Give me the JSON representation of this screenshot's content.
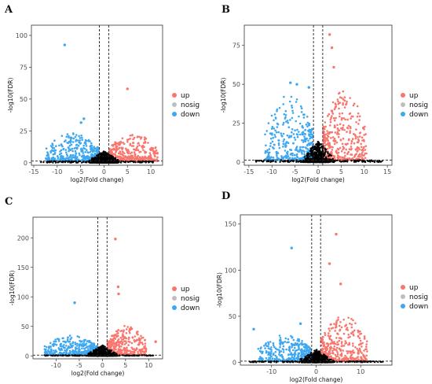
{
  "colors": {
    "up": "#F8766D",
    "nosig": "#BEBEBE",
    "down": "#3EA7F0",
    "core": "#000000",
    "frame": "#333333",
    "tick_text": "#4d4d4d"
  },
  "chart_data": [
    {
      "panel": "A",
      "type": "scatter",
      "xlabel": "log2(Fold change)",
      "ylabel": "-log10(FDR)",
      "xticks": [
        -15,
        -10,
        -5,
        0,
        5,
        10
      ],
      "yticks": [
        0,
        25,
        50,
        75,
        100
      ],
      "xlim": [
        -15.5,
        12.5
      ],
      "ylim": [
        -2,
        108
      ],
      "vlines": [
        -1,
        1
      ],
      "hline": 1.3,
      "legend": [
        "up",
        "nosig",
        "down"
      ],
      "highlight_points": [
        {
          "x": -8.4,
          "y": 92.5,
          "group": "down"
        },
        {
          "x": 5.0,
          "y": 58.0,
          "group": "up"
        },
        {
          "x": -4.3,
          "y": 34.5,
          "group": "down"
        },
        {
          "x": -4.9,
          "y": 31.5,
          "group": "down"
        }
      ],
      "clusters": {
        "down": {
          "xmin": -12.5,
          "xmax": -1.1,
          "ymax": 22
        },
        "up": {
          "xmin": 1.1,
          "xmax": 11.5,
          "ymax": 22
        },
        "core": {
          "x": 3.5,
          "y": 9
        }
      }
    },
    {
      "panel": "B",
      "type": "scatter",
      "xlabel": "log2(Fold change)",
      "ylabel": "-log10(FDR)",
      "xticks": [
        -15,
        -10,
        -5,
        0,
        5,
        10,
        15
      ],
      "yticks": [
        0,
        25,
        50,
        75
      ],
      "xlim": [
        -16,
        16
      ],
      "ylim": [
        -2,
        88
      ],
      "vlines": [
        -1,
        1
      ],
      "hline": 1.3,
      "legend": [
        "up",
        "nosig",
        "down"
      ],
      "highlight_points": [
        {
          "x": 2.5,
          "y": 82.0,
          "group": "up"
        },
        {
          "x": 3.0,
          "y": 73.5,
          "group": "up"
        },
        {
          "x": -6.0,
          "y": 51.0,
          "group": "down"
        },
        {
          "x": -4.6,
          "y": 50.0,
          "group": "down"
        },
        {
          "x": -2.0,
          "y": 48.0,
          "group": "down"
        },
        {
          "x": 3.4,
          "y": 61.0,
          "group": "up"
        },
        {
          "x": 9.8,
          "y": 22.0,
          "group": "up"
        }
      ],
      "clusters": {
        "down": {
          "xmin": -11.5,
          "xmax": -1.1,
          "ymax": 42
        },
        "up": {
          "xmin": 1.1,
          "xmax": 10.5,
          "ymax": 45
        },
        "core": {
          "x": 3.5,
          "y": 14
        }
      }
    },
    {
      "panel": "C",
      "type": "scatter",
      "xlabel": "log2(Fold change)",
      "ylabel": "-log10(FDR)",
      "xticks": [
        -10,
        -5,
        0,
        5,
        10
      ],
      "yticks": [
        0,
        50,
        100,
        150,
        200
      ],
      "xlim": [
        -15,
        13
      ],
      "ylim": [
        -5,
        235
      ],
      "vlines": [
        -1,
        1
      ],
      "hline": 1.3,
      "legend": [
        "up",
        "nosig",
        "down"
      ],
      "highlight_points": [
        {
          "x": 2.8,
          "y": 198.0,
          "group": "up"
        },
        {
          "x": 3.4,
          "y": 117.0,
          "group": "up"
        },
        {
          "x": 3.5,
          "y": 105.0,
          "group": "up"
        },
        {
          "x": -6.0,
          "y": 90.0,
          "group": "down"
        },
        {
          "x": 11.5,
          "y": 24.0,
          "group": "up"
        },
        {
          "x": -10.5,
          "y": 20.0,
          "group": "down"
        }
      ],
      "clusters": {
        "down": {
          "xmin": -12.5,
          "xmax": -1.1,
          "ymax": 34
        },
        "up": {
          "xmin": 1.1,
          "xmax": 9.5,
          "ymax": 50
        },
        "core": {
          "x": 3.5,
          "y": 18
        }
      }
    },
    {
      "panel": "D",
      "type": "scatter",
      "xlabel": "log2(Fold change)",
      "ylabel": "-log10(FDR)",
      "xticks": [
        -10,
        0,
        10
      ],
      "yticks": [
        0,
        50,
        100,
        150
      ],
      "xlim": [
        -17,
        17
      ],
      "ylim": [
        -3,
        160
      ],
      "vlines": [
        -1,
        1
      ],
      "hline": 1.3,
      "legend": [
        "up",
        "nosig",
        "down"
      ],
      "highlight_points": [
        {
          "x": 4.5,
          "y": 139.0,
          "group": "up"
        },
        {
          "x": -5.5,
          "y": 124.0,
          "group": "down"
        },
        {
          "x": 3.0,
          "y": 107.0,
          "group": "up"
        },
        {
          "x": 5.5,
          "y": 85.0,
          "group": "up"
        },
        {
          "x": -14.0,
          "y": 36.0,
          "group": "down"
        },
        {
          "x": -3.5,
          "y": 42.0,
          "group": "down"
        },
        {
          "x": 10.0,
          "y": 20.0,
          "group": "up"
        }
      ],
      "clusters": {
        "down": {
          "xmin": -13.0,
          "xmax": -1.1,
          "ymax": 30
        },
        "up": {
          "xmin": 1.1,
          "xmax": 11.5,
          "ymax": 50
        },
        "core": {
          "x": 4,
          "y": 14
        }
      }
    }
  ]
}
